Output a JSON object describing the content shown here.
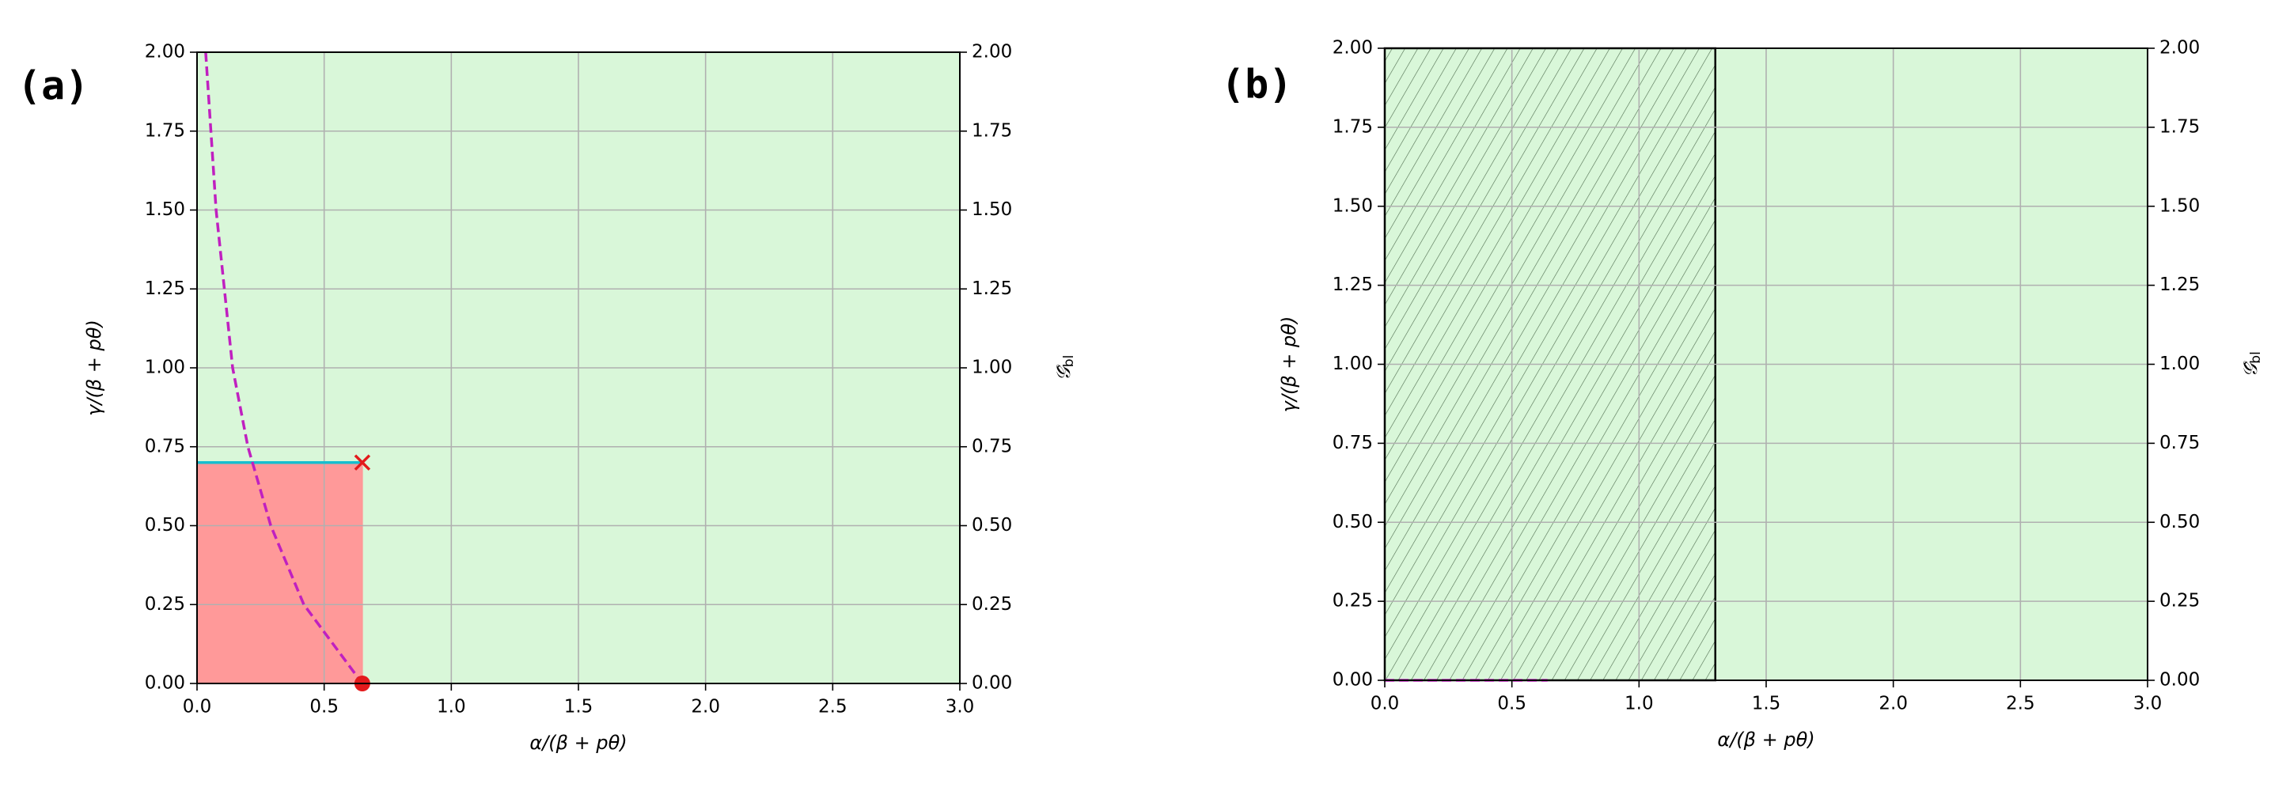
{
  "chart_data": [
    {
      "type": "region",
      "panel_label": "(a)",
      "xlabel": "α/(β + pθ)",
      "ylabel": "γ/(β + pθ)",
      "y2label": "𝒢̂",
      "y2label_subscript": "bl",
      "xlim": [
        0,
        3
      ],
      "ylim": [
        0,
        2
      ],
      "y2lim": [
        0,
        2
      ],
      "xticks": [
        {
          "value": 0,
          "label": "0.0"
        },
        {
          "value": 0.5,
          "label": "0.5"
        },
        {
          "value": 1,
          "label": "1.0"
        },
        {
          "value": 1.5,
          "label": "1.5"
        },
        {
          "value": 2,
          "label": "2.0"
        },
        {
          "value": 2.5,
          "label": "2.5"
        },
        {
          "value": 3,
          "label": "3.0"
        }
      ],
      "yticks": [
        {
          "value": 0,
          "label": "0.00"
        },
        {
          "value": 0.25,
          "label": "0.25"
        },
        {
          "value": 0.5,
          "label": "0.50"
        },
        {
          "value": 0.75,
          "label": "0.75"
        },
        {
          "value": 1,
          "label": "1.00"
        },
        {
          "value": 1.25,
          "label": "1.25"
        },
        {
          "value": 1.5,
          "label": "1.50"
        },
        {
          "value": 1.75,
          "label": "1.75"
        },
        {
          "value": 2,
          "label": "2.00"
        }
      ],
      "y2ticks": [
        {
          "value": 0,
          "label": "0.00"
        },
        {
          "value": 0.25,
          "label": "0.25"
        },
        {
          "value": 0.5,
          "label": "0.50"
        },
        {
          "value": 0.75,
          "label": "0.75"
        },
        {
          "value": 1,
          "label": "1.00"
        },
        {
          "value": 1.25,
          "label": "1.25"
        },
        {
          "value": 1.5,
          "label": "1.50"
        },
        {
          "value": 1.75,
          "label": "1.75"
        },
        {
          "value": 2,
          "label": "2.00"
        }
      ],
      "grid": true,
      "background": "#d9f7d9",
      "rects": [
        {
          "x": [
            0,
            0.65
          ],
          "y": [
            0,
            0.7
          ],
          "color": "#ff9999",
          "hatch": false
        }
      ],
      "lines": [
        {
          "x": [
            0,
            0.65
          ],
          "y": [
            0.7,
            0.7
          ],
          "color": "#17becf",
          "dash": false
        },
        {
          "x": [
            0.034,
            0.075,
            0.14,
            0.2,
            0.29,
            0.42,
            0.65
          ],
          "y": [
            2,
            1.5,
            1,
            0.75,
            0.5,
            0.25,
            0
          ],
          "color": "#c020c0",
          "dash": true
        }
      ],
      "points": [
        {
          "x": 0.65,
          "y": 0.7,
          "marker": "x",
          "color": "#e31a1c"
        },
        {
          "x": 0.65,
          "y": 0,
          "marker": "o",
          "color": "#e31a1c"
        }
      ]
    },
    {
      "type": "region",
      "panel_label": "(b)",
      "xlabel": "α/(β + pθ)",
      "ylabel": "γ/(β + pθ)",
      "y2label": "𝒢̂",
      "y2label_subscript": "bl",
      "xlim": [
        0,
        3
      ],
      "ylim": [
        0,
        2
      ],
      "y2lim": [
        0,
        2
      ],
      "xticks": [
        {
          "value": 0,
          "label": "0.0"
        },
        {
          "value": 0.5,
          "label": "0.5"
        },
        {
          "value": 1,
          "label": "1.0"
        },
        {
          "value": 1.5,
          "label": "1.5"
        },
        {
          "value": 2,
          "label": "2.0"
        },
        {
          "value": 2.5,
          "label": "2.5"
        },
        {
          "value": 3,
          "label": "3.0"
        }
      ],
      "yticks": [
        {
          "value": 0,
          "label": "0.00"
        },
        {
          "value": 0.25,
          "label": "0.25"
        },
        {
          "value": 0.5,
          "label": "0.50"
        },
        {
          "value": 0.75,
          "label": "0.75"
        },
        {
          "value": 1,
          "label": "1.00"
        },
        {
          "value": 1.25,
          "label": "1.25"
        },
        {
          "value": 1.5,
          "label": "1.50"
        },
        {
          "value": 1.75,
          "label": "1.75"
        },
        {
          "value": 2,
          "label": "2.00"
        }
      ],
      "y2ticks": [
        {
          "value": 0,
          "label": "0.00"
        },
        {
          "value": 0.25,
          "label": "0.25"
        },
        {
          "value": 0.5,
          "label": "0.50"
        },
        {
          "value": 0.75,
          "label": "0.75"
        },
        {
          "value": 1,
          "label": "1.00"
        },
        {
          "value": 1.25,
          "label": "1.25"
        },
        {
          "value": 1.5,
          "label": "1.50"
        },
        {
          "value": 1.75,
          "label": "1.75"
        },
        {
          "value": 2,
          "label": "2.00"
        }
      ],
      "grid": true,
      "background": "#d9f7d9",
      "rects": [
        {
          "x": [
            0,
            1.3
          ],
          "y": [
            0,
            2
          ],
          "color": "#4d6b4d",
          "hatch": true
        }
      ],
      "lines": [
        {
          "x": [
            0,
            0.64
          ],
          "y": [
            0,
            0
          ],
          "color": "#c020c0",
          "dash": true
        }
      ],
      "points": []
    }
  ]
}
